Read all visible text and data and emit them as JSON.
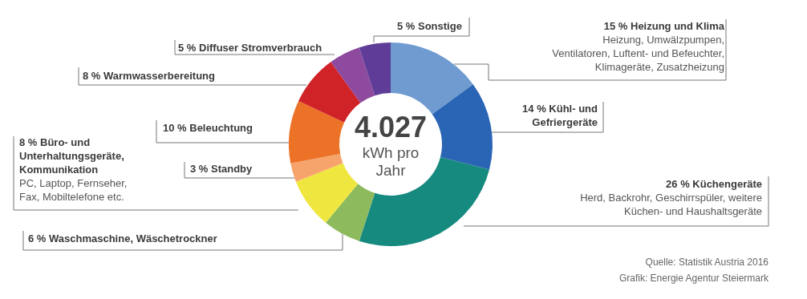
{
  "chart_data": {
    "type": "donut",
    "title": "4.027",
    "subtitle": "kWh pro\nJahr",
    "categories": [
      "Heizung und Klima",
      "Kühl- und\nGefriergeräte",
      "Küchengeräte",
      "Waschmaschine, Wäschetrockner",
      "Büro- und\nUnterhaltungsgeräte,\nKommunikation",
      "Standby",
      "Beleuchtung",
      "Warmwasserbereitung",
      "Diffuser Stromverbrauch",
      "Sonstige"
    ],
    "values": [
      15,
      14,
      26,
      6,
      8,
      3,
      10,
      8,
      5,
      5
    ],
    "value_labels": [
      "15 %",
      "14 %",
      "26 %",
      "6 %",
      "8 %",
      "3 %",
      "10 %",
      "8 %",
      "5 %",
      "5 %"
    ],
    "colors": [
      "#6f9bd0",
      "#2a64b4",
      "#178a80",
      "#8cba5c",
      "#f0e640",
      "#f7a46c",
      "#ec7228",
      "#d02328",
      "#8e4a9e",
      "#5f3c98"
    ],
    "annotations": [
      {
        "text": "Heizung, Umwälzpumpen,\nVentilatoren, Luftent- und Befeuchter,\nKlimageräte, Zusatzheizung",
        "x": "Heizung und Klima"
      },
      {
        "text": "Herd, Backrohr, Geschirrspüler, weitere\nKüchen- und Haushaltsgeräte",
        "x": "Küchengeräte"
      },
      {
        "text": "PC, Laptop, Fernseher,\nFax, Mobiltelefone etc.",
        "x": "Büro- und\nUnterhaltungsgeräte,\nKommunikation"
      },
      "Quelle: Statistik Austria 2016",
      "Grafik: Energie Agentur Steiermark"
    ]
  }
}
